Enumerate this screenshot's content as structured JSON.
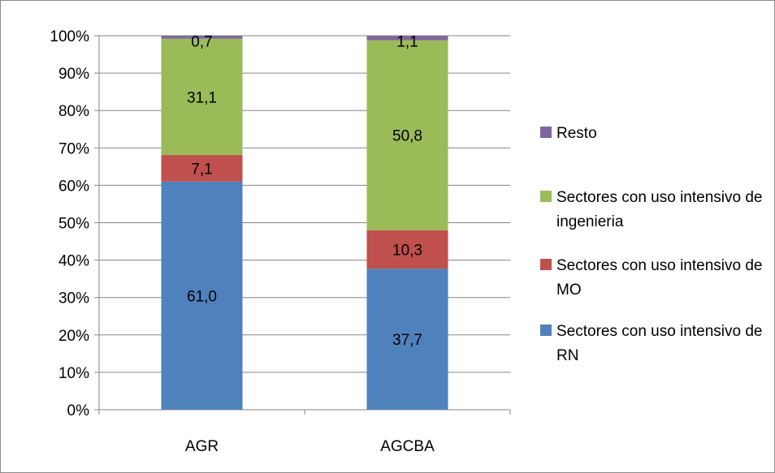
{
  "chart_data": {
    "type": "bar",
    "stacked": true,
    "percent_axis": true,
    "categories": [
      "AGR",
      "AGCBA"
    ],
    "yticks": [
      "0%",
      "10%",
      "20%",
      "30%",
      "40%",
      "50%",
      "60%",
      "70%",
      "80%",
      "90%",
      "100%"
    ],
    "ylim": [
      0,
      100
    ],
    "grid": true,
    "legend_position": "right",
    "series": [
      {
        "name": "Sectores con uso intensivo de RN",
        "color": "#4f81bd",
        "values": [
          61.0,
          37.7
        ],
        "labels": [
          "61,0",
          "37,7"
        ]
      },
      {
        "name": "Sectores con uso intensivo de MO",
        "color": "#c0504d",
        "values": [
          7.1,
          10.3
        ],
        "labels": [
          "7,1",
          "10,3"
        ]
      },
      {
        "name": "Sectores con uso intensivo de ingenieria",
        "color": "#9bbb59",
        "values": [
          31.1,
          50.8
        ],
        "labels": [
          "31,1",
          "50,8"
        ]
      },
      {
        "name": "Resto",
        "color": "#8064a2",
        "values": [
          0.7,
          1.1
        ],
        "labels": [
          "0,7",
          "1,1"
        ]
      }
    ],
    "legend_order": [
      3,
      2,
      1,
      0
    ]
  }
}
